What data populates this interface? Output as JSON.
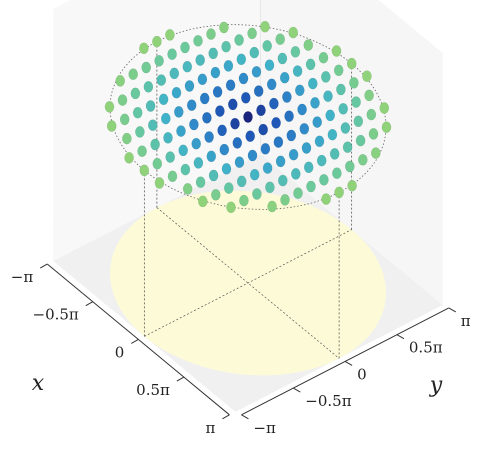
{
  "chart_data": {
    "type": "scatter",
    "title": "",
    "projection": "3d",
    "xlabel": "x",
    "ylabel": "y",
    "xlim": [
      "-π",
      "π"
    ],
    "ylim": [
      "-π",
      "π"
    ],
    "x_ticks": [
      {
        "value": -3.1416,
        "label": "−π"
      },
      {
        "value": -1.5708,
        "label": "−0.5π"
      },
      {
        "value": 0,
        "label": "0"
      },
      {
        "value": 1.5708,
        "label": "0.5π"
      },
      {
        "value": 3.1416,
        "label": "π"
      }
    ],
    "y_ticks": [
      {
        "value": -3.1416,
        "label": "−π"
      },
      {
        "value": -1.5708,
        "label": "−0.5π"
      },
      {
        "value": 0,
        "label": "0"
      },
      {
        "value": 1.5708,
        "label": "0.5π"
      },
      {
        "value": 3.1416,
        "label": "π"
      }
    ],
    "disc": {
      "radius": 3.1416,
      "fill": "#fdfbd7"
    },
    "point_grid": {
      "rows": 13,
      "cols": 17,
      "row_spacing": 0.5236,
      "col_spacing": 0.3927,
      "max_radius": 3.1416
    },
    "colormap": [
      "#1a237e",
      "#1e56b5",
      "#2f87c8",
      "#3fb1c9",
      "#62c6a4",
      "#8fd27a"
    ],
    "grid": false,
    "pane_color": "#f0f0f0"
  }
}
